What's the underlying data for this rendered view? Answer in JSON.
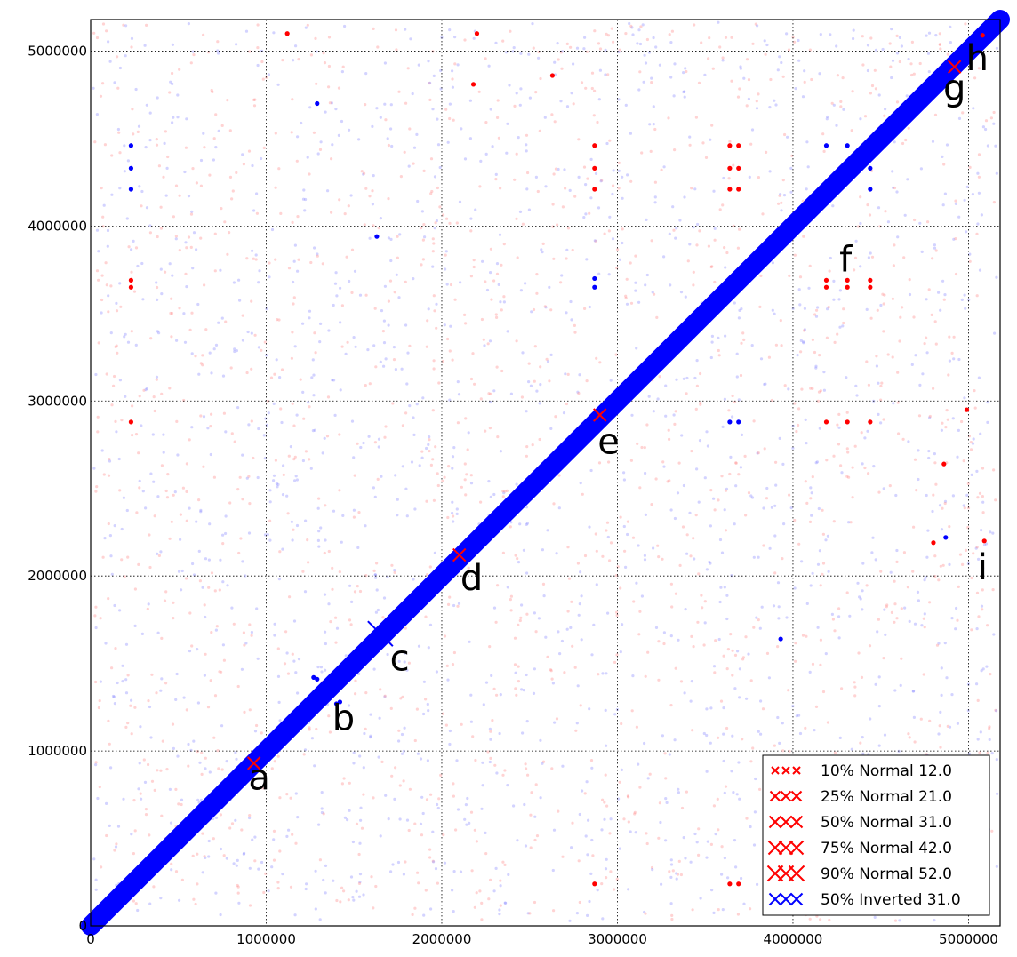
{
  "chart_data": {
    "type": "scatter",
    "title": "",
    "xlabel": "",
    "ylabel": "",
    "xlim": [
      0,
      5180000
    ],
    "ylim": [
      0,
      5180000
    ],
    "grid": true,
    "legend_position": "bottom-right",
    "x_ticks": [
      0,
      1000000,
      2000000,
      3000000,
      4000000,
      5000000
    ],
    "y_ticks": [
      0,
      1000000,
      2000000,
      3000000,
      4000000,
      5000000
    ],
    "x_tick_labels": [
      "0",
      "1000000",
      "2000000",
      "3000000",
      "4000000",
      "5000000"
    ],
    "y_tick_labels": [
      "0",
      "1000000",
      "2000000",
      "3000000",
      "4000000",
      "5000000"
    ],
    "diagonal": {
      "from": [
        0,
        0
      ],
      "to": [
        5180000,
        5180000
      ],
      "color": "#0000ff"
    },
    "legend": [
      {
        "label": "10% Normal 12.0",
        "color": "#ff0000"
      },
      {
        "label": "25% Normal 21.0",
        "color": "#ff0000"
      },
      {
        "label": "50% Normal 31.0",
        "color": "#ff0000"
      },
      {
        "label": "75% Normal 42.0",
        "color": "#ff0000"
      },
      {
        "label": "90% Normal 52.0",
        "color": "#ff0000"
      },
      {
        "label": "50% Inverted 31.0",
        "color": "#0000ff"
      }
    ],
    "annotations": [
      {
        "text": "a",
        "x": 960000,
        "y": 780000
      },
      {
        "text": "b",
        "x": 1440000,
        "y": 1120000
      },
      {
        "text": "c",
        "x": 1760000,
        "y": 1460000
      },
      {
        "text": "d",
        "x": 2170000,
        "y": 1920000
      },
      {
        "text": "e",
        "x": 2950000,
        "y": 2700000
      },
      {
        "text": "f",
        "x": 4300000,
        "y": 3740000
      },
      {
        "text": "g",
        "x": 4920000,
        "y": 4720000
      },
      {
        "text": "h",
        "x": 5050000,
        "y": 4890000
      },
      {
        "text": "i",
        "x": 5080000,
        "y": 1980000
      }
    ],
    "red_crosses": [
      {
        "x": 930000,
        "y": 930000
      },
      {
        "x": 2100000,
        "y": 2120000
      },
      {
        "x": 2900000,
        "y": 2920000
      },
      {
        "x": 4920000,
        "y": 4910000
      }
    ],
    "blue_crosses": [
      {
        "x": 1650000,
        "y": 1670000
      }
    ],
    "red_points": [
      {
        "x": 2870000,
        "y": 4460000
      },
      {
        "x": 2870000,
        "y": 4330000
      },
      {
        "x": 2870000,
        "y": 4210000
      },
      {
        "x": 3640000,
        "y": 4460000
      },
      {
        "x": 3690000,
        "y": 4460000
      },
      {
        "x": 3640000,
        "y": 4330000
      },
      {
        "x": 3690000,
        "y": 4330000
      },
      {
        "x": 3640000,
        "y": 4210000
      },
      {
        "x": 3690000,
        "y": 4210000
      },
      {
        "x": 230000,
        "y": 3690000
      },
      {
        "x": 230000,
        "y": 3650000
      },
      {
        "x": 4190000,
        "y": 3690000
      },
      {
        "x": 4190000,
        "y": 3650000
      },
      {
        "x": 4310000,
        "y": 3690000
      },
      {
        "x": 4310000,
        "y": 3650000
      },
      {
        "x": 4440000,
        "y": 3690000
      },
      {
        "x": 4440000,
        "y": 3650000
      },
      {
        "x": 230000,
        "y": 2880000
      },
      {
        "x": 4190000,
        "y": 2880000
      },
      {
        "x": 4310000,
        "y": 2880000
      },
      {
        "x": 4440000,
        "y": 2880000
      },
      {
        "x": 2870000,
        "y": 240000
      },
      {
        "x": 3640000,
        "y": 240000
      },
      {
        "x": 3690000,
        "y": 240000
      },
      {
        "x": 4800000,
        "y": 2190000
      },
      {
        "x": 5090000,
        "y": 2200000
      },
      {
        "x": 4860000,
        "y": 2640000
      },
      {
        "x": 2630000,
        "y": 4860000
      },
      {
        "x": 2180000,
        "y": 4810000
      },
      {
        "x": 5080000,
        "y": 5090000
      },
      {
        "x": 2200000,
        "y": 5100000
      },
      {
        "x": 1120000,
        "y": 5100000
      },
      {
        "x": 4990000,
        "y": 2950000
      }
    ],
    "blue_points": [
      {
        "x": 230000,
        "y": 4460000
      },
      {
        "x": 230000,
        "y": 4330000
      },
      {
        "x": 230000,
        "y": 4210000
      },
      {
        "x": 4190000,
        "y": 4460000
      },
      {
        "x": 4310000,
        "y": 4460000
      },
      {
        "x": 4440000,
        "y": 4330000
      },
      {
        "x": 4440000,
        "y": 4210000
      },
      {
        "x": 2870000,
        "y": 3700000
      },
      {
        "x": 2870000,
        "y": 3650000
      },
      {
        "x": 3640000,
        "y": 2880000
      },
      {
        "x": 3690000,
        "y": 2880000
      },
      {
        "x": 1270000,
        "y": 1420000
      },
      {
        "x": 1290000,
        "y": 1410000
      },
      {
        "x": 1400000,
        "y": 1270000
      },
      {
        "x": 1420000,
        "y": 1280000
      },
      {
        "x": 3930000,
        "y": 1640000
      },
      {
        "x": 1630000,
        "y": 3940000
      },
      {
        "x": 1290000,
        "y": 4700000
      },
      {
        "x": 4870000,
        "y": 2220000
      }
    ]
  }
}
